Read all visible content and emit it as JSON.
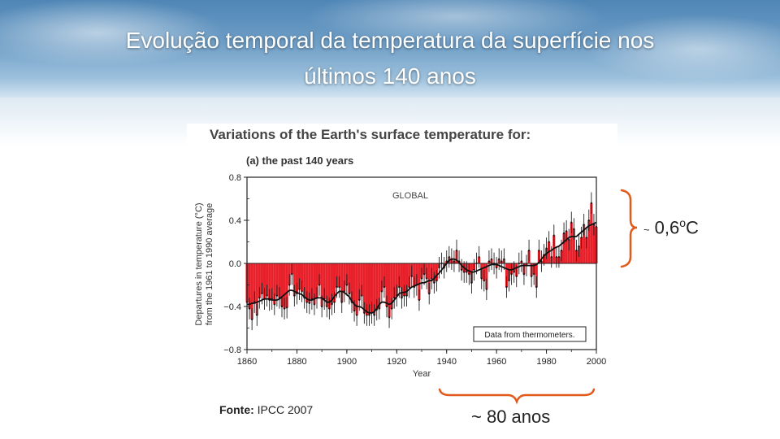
{
  "slide": {
    "title_line1": "Evolução temporal da temperatura da superfície nos",
    "title_line2": "últimos 140 anos",
    "source_prefix": "Fonte: ",
    "source_value": "IPCC 2007",
    "annotation_years": "~ 80 anos",
    "annotation_temp_tilde": "~",
    "annotation_temp_value": "0,6",
    "annotation_temp_degree": "o",
    "annotation_temp_unit": "C",
    "brace_color": "#e05a1c"
  },
  "chart_data": {
    "type": "bar",
    "title": "Variations of the Earth's surface temperature for:",
    "subtitle": "(a) the past 140 years",
    "region_label": "GLOBAL",
    "xlabel": "Year",
    "ylabel_line1": "Departures in temperature (°C)",
    "ylabel_line2": "from the 1961 to 1990 average",
    "legend": "Data from thermometers.",
    "xlim": [
      1860,
      2000
    ],
    "ylim": [
      -0.8,
      0.8
    ],
    "xticks": [
      1860,
      1880,
      1900,
      1920,
      1940,
      1960,
      1980,
      2000
    ],
    "yticks": [
      0.8,
      0.4,
      0.0,
      -0.4,
      -0.8
    ],
    "ytick_labels": [
      "0.8",
      "0.4",
      "0.0",
      "−0.4",
      "−0.8"
    ],
    "bar_color": "#e8202a",
    "x": [
      1860,
      1861,
      1862,
      1863,
      1864,
      1865,
      1866,
      1867,
      1868,
      1869,
      1870,
      1871,
      1872,
      1873,
      1874,
      1875,
      1876,
      1877,
      1878,
      1879,
      1880,
      1881,
      1882,
      1883,
      1884,
      1885,
      1886,
      1887,
      1888,
      1889,
      1890,
      1891,
      1892,
      1893,
      1894,
      1895,
      1896,
      1897,
      1898,
      1899,
      1900,
      1901,
      1902,
      1903,
      1904,
      1905,
      1906,
      1907,
      1908,
      1909,
      1910,
      1911,
      1912,
      1913,
      1914,
      1915,
      1916,
      1917,
      1918,
      1919,
      1920,
      1921,
      1922,
      1923,
      1924,
      1925,
      1926,
      1927,
      1928,
      1929,
      1930,
      1931,
      1932,
      1933,
      1934,
      1935,
      1936,
      1937,
      1938,
      1939,
      1940,
      1941,
      1942,
      1943,
      1944,
      1945,
      1946,
      1947,
      1948,
      1949,
      1950,
      1951,
      1952,
      1953,
      1954,
      1955,
      1956,
      1957,
      1958,
      1959,
      1960,
      1961,
      1962,
      1963,
      1964,
      1965,
      1966,
      1967,
      1968,
      1969,
      1970,
      1971,
      1972,
      1973,
      1974,
      1975,
      1976,
      1977,
      1978,
      1979,
      1980,
      1981,
      1982,
      1983,
      1984,
      1985,
      1986,
      1987,
      1988,
      1989,
      1990,
      1991,
      1992,
      1993,
      1994,
      1995,
      1996,
      1997,
      1998,
      1999,
      2000
    ],
    "anomaly": [
      -0.36,
      -0.42,
      -0.52,
      -0.36,
      -0.48,
      -0.32,
      -0.28,
      -0.33,
      -0.3,
      -0.34,
      -0.33,
      -0.38,
      -0.3,
      -0.32,
      -0.4,
      -0.42,
      -0.41,
      -0.2,
      -0.1,
      -0.3,
      -0.28,
      -0.24,
      -0.26,
      -0.32,
      -0.36,
      -0.37,
      -0.33,
      -0.38,
      -0.32,
      -0.2,
      -0.4,
      -0.33,
      -0.4,
      -0.42,
      -0.38,
      -0.36,
      -0.22,
      -0.22,
      -0.36,
      -0.26,
      -0.2,
      -0.28,
      -0.36,
      -0.44,
      -0.48,
      -0.34,
      -0.3,
      -0.46,
      -0.48,
      -0.48,
      -0.46,
      -0.48,
      -0.43,
      -0.42,
      -0.26,
      -0.22,
      -0.4,
      -0.5,
      -0.42,
      -0.32,
      -0.3,
      -0.22,
      -0.32,
      -0.3,
      -0.3,
      -0.22,
      -0.12,
      -0.22,
      -0.2,
      -0.34,
      -0.14,
      -0.1,
      -0.14,
      -0.28,
      -0.14,
      -0.18,
      -0.16,
      -0.04,
      0.0,
      -0.04,
      0.02,
      0.06,
      0.04,
      0.02,
      0.12,
      0.02,
      -0.06,
      -0.08,
      -0.08,
      -0.1,
      -0.18,
      -0.06,
      0.0,
      0.06,
      -0.14,
      -0.16,
      -0.24,
      0.02,
      0.04,
      0.0,
      -0.04,
      0.04,
      0.02,
      0.04,
      -0.22,
      -0.16,
      -0.1,
      -0.08,
      -0.12,
      0.0,
      0.02,
      -0.1,
      -0.02,
      0.12,
      -0.12,
      -0.1,
      -0.22,
      0.12,
      0.02,
      0.08,
      0.14,
      0.2,
      0.06,
      0.26,
      0.06,
      0.06,
      0.12,
      0.28,
      0.3,
      0.22,
      0.38,
      0.32,
      0.12,
      0.16,
      0.24,
      0.36,
      0.24,
      0.4,
      0.56,
      0.36,
      0.34
    ],
    "error_bar": 0.1,
    "smoothed": [
      -0.38,
      -0.38,
      -0.37,
      -0.37,
      -0.36,
      -0.35,
      -0.34,
      -0.33,
      -0.33,
      -0.33,
      -0.34,
      -0.34,
      -0.34,
      -0.33,
      -0.31,
      -0.29,
      -0.27,
      -0.25,
      -0.25,
      -0.26,
      -0.27,
      -0.28,
      -0.29,
      -0.31,
      -0.33,
      -0.34,
      -0.34,
      -0.33,
      -0.32,
      -0.32,
      -0.32,
      -0.34,
      -0.36,
      -0.36,
      -0.34,
      -0.31,
      -0.28,
      -0.26,
      -0.26,
      -0.27,
      -0.29,
      -0.31,
      -0.35,
      -0.38,
      -0.4,
      -0.4,
      -0.41,
      -0.43,
      -0.45,
      -0.46,
      -0.46,
      -0.45,
      -0.42,
      -0.38,
      -0.36,
      -0.36,
      -0.37,
      -0.38,
      -0.37,
      -0.34,
      -0.31,
      -0.28,
      -0.27,
      -0.27,
      -0.26,
      -0.24,
      -0.22,
      -0.21,
      -0.2,
      -0.19,
      -0.18,
      -0.18,
      -0.17,
      -0.16,
      -0.16,
      -0.14,
      -0.11,
      -0.09,
      -0.06,
      -0.03,
      0.0,
      0.03,
      0.04,
      0.04,
      0.03,
      0.01,
      -0.02,
      -0.04,
      -0.06,
      -0.07,
      -0.08,
      -0.08,
      -0.07,
      -0.06,
      -0.05,
      -0.04,
      -0.03,
      -0.02,
      -0.01,
      -0.01,
      -0.01,
      -0.02,
      -0.03,
      -0.04,
      -0.05,
      -0.06,
      -0.06,
      -0.05,
      -0.04,
      -0.03,
      -0.02,
      -0.02,
      -0.02,
      -0.02,
      -0.02,
      -0.02,
      -0.01,
      0.01,
      0.04,
      0.07,
      0.09,
      0.11,
      0.12,
      0.14,
      0.15,
      0.16,
      0.18,
      0.2,
      0.22,
      0.24,
      0.25,
      0.25,
      0.25,
      0.27,
      0.29,
      0.31,
      0.33,
      0.35,
      0.36,
      0.37,
      0.38
    ]
  }
}
